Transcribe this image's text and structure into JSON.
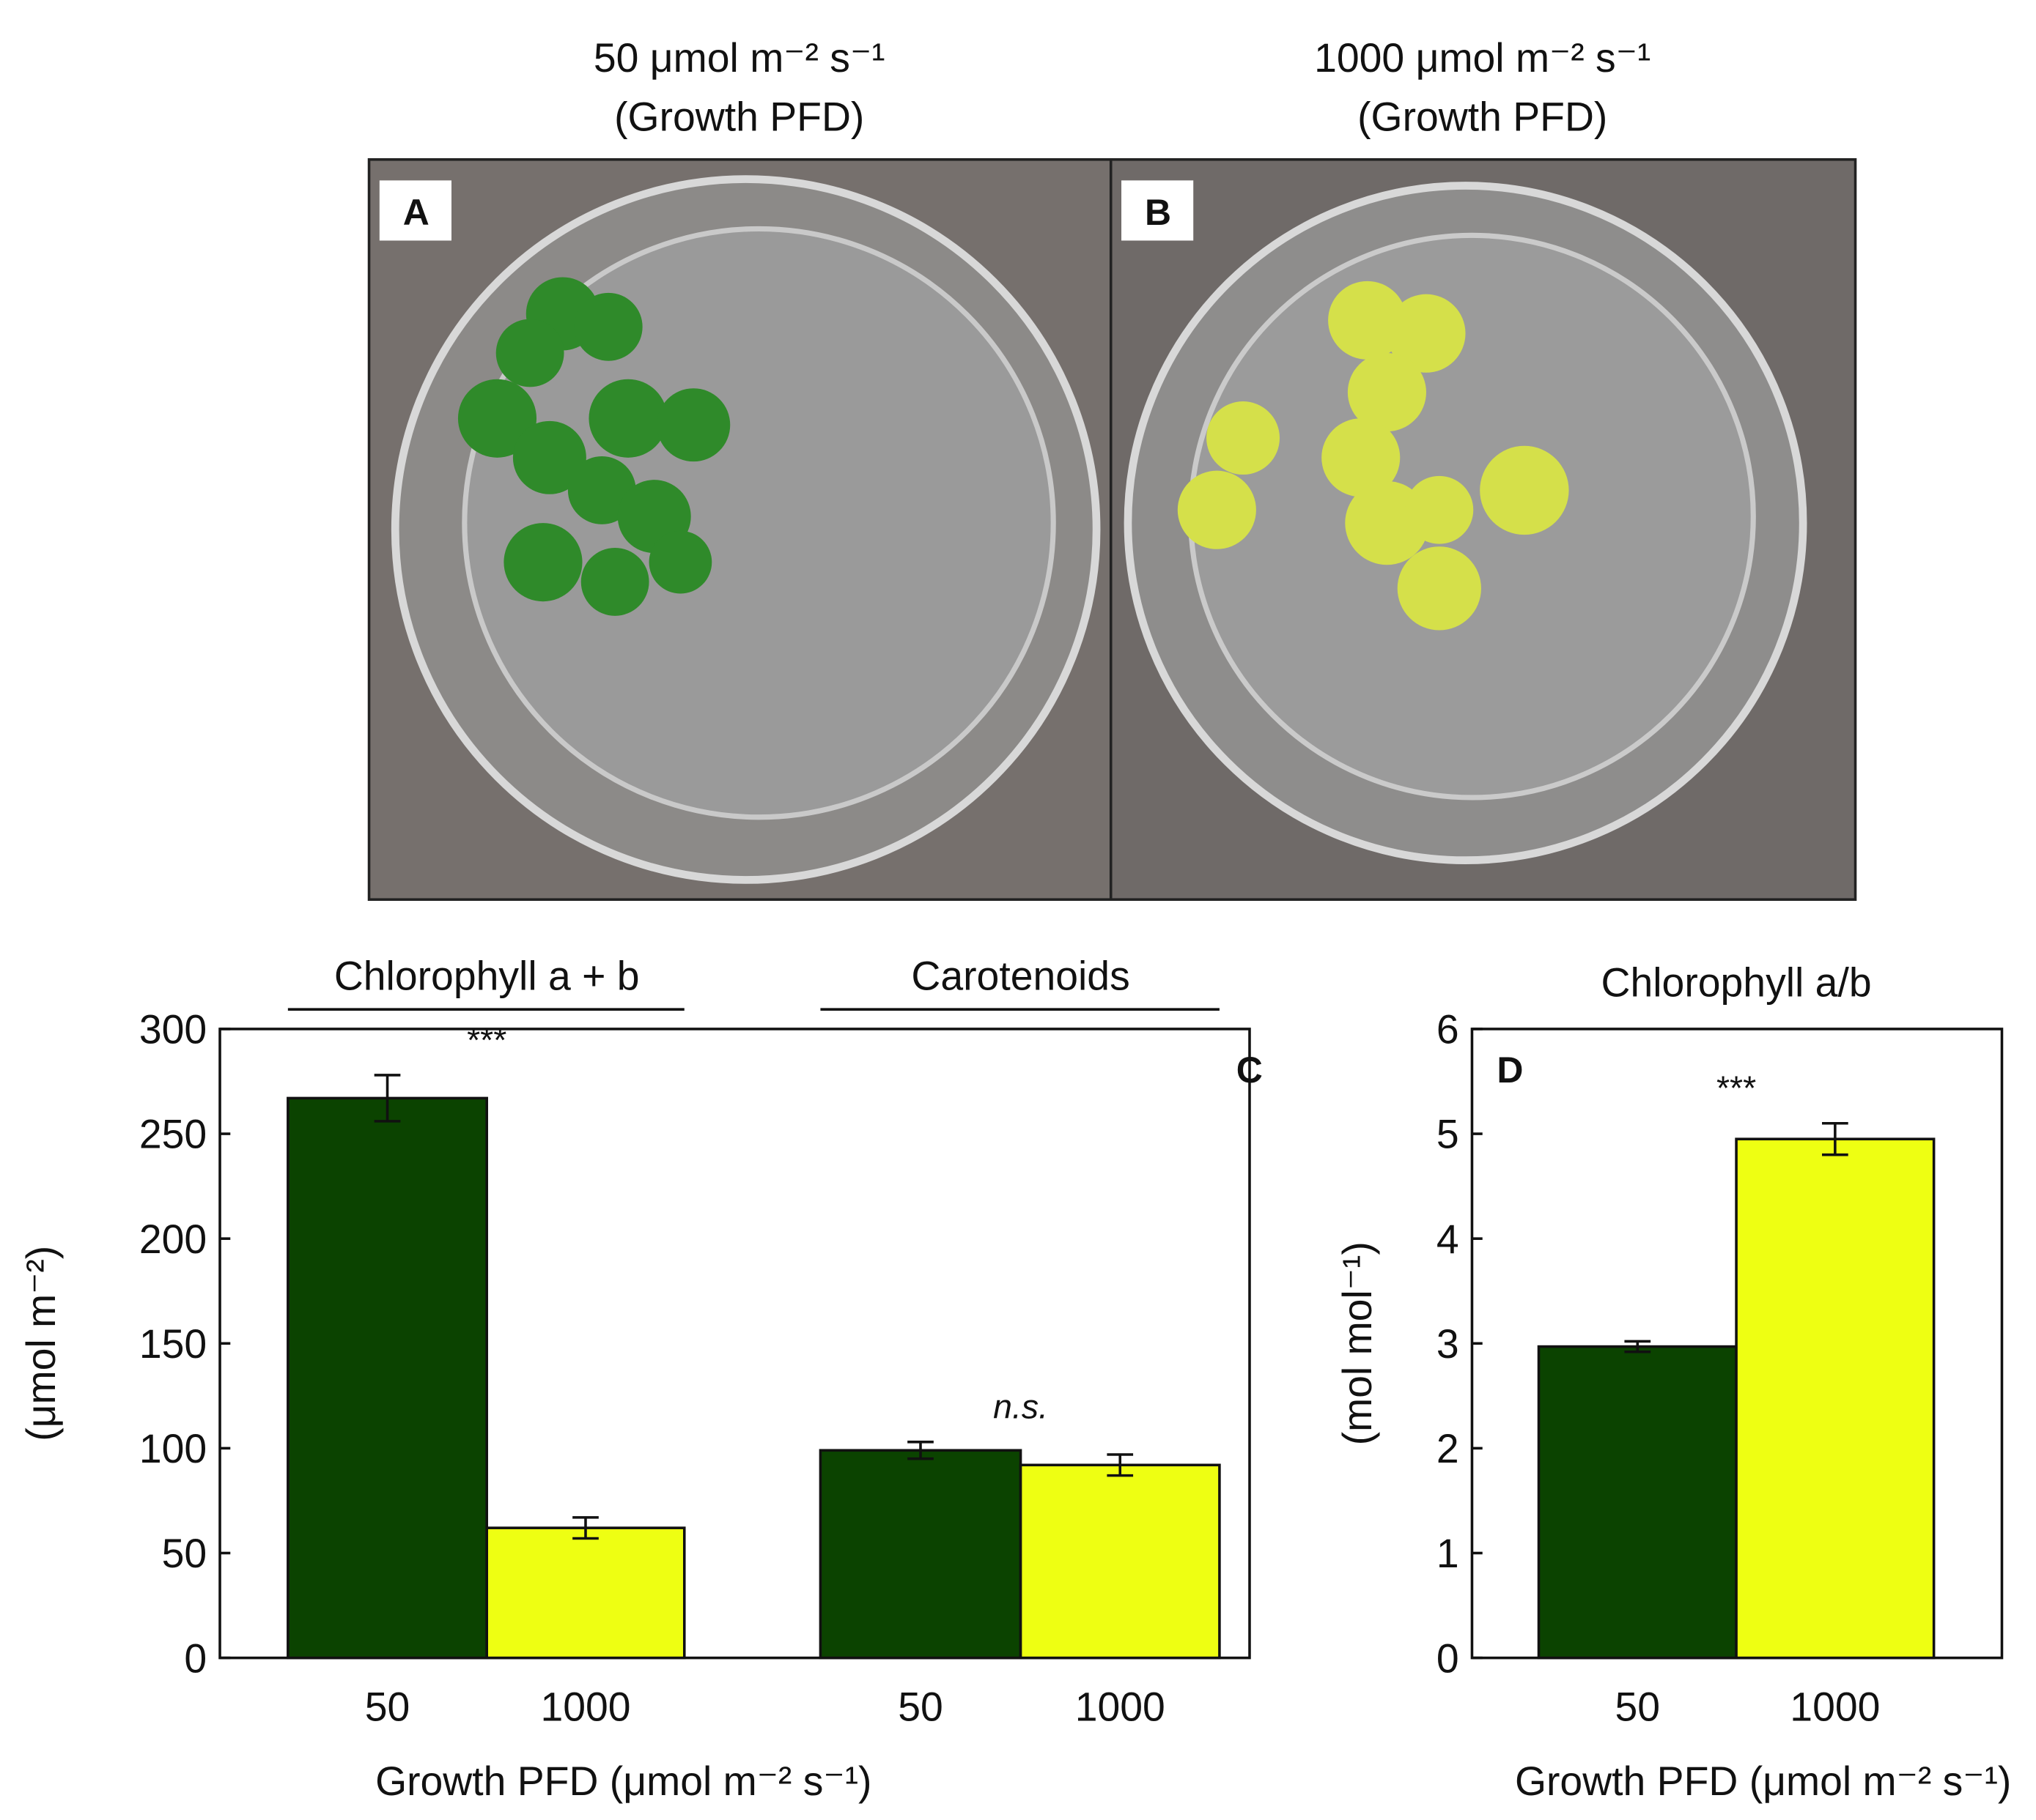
{
  "photos": [
    {
      "letter": "A",
      "title": "50 μmol m⁻² s⁻¹",
      "subtitle": "(Growth PFD)"
    },
    {
      "letter": "B",
      "title": "1000 μmol m⁻² s⁻¹",
      "subtitle": "(Growth PFD)"
    }
  ],
  "chart_data": [
    {
      "type": "bar",
      "panel": "C",
      "colors": [
        "#0b4300",
        "#eeff12"
      ],
      "groups": [
        {
          "name": "Chlorophyll a + b",
          "categories": [
            "50",
            "1000"
          ],
          "values": [
            267,
            62
          ],
          "errors": [
            11,
            5
          ],
          "annotation": "***"
        },
        {
          "name": "Carotenoids",
          "categories": [
            "50",
            "1000"
          ],
          "values": [
            99,
            92
          ],
          "errors": [
            4,
            5
          ],
          "annotation": "n.s."
        }
      ],
      "xlabel": "Growth PFD (μmol m⁻² s⁻¹)",
      "ylabel": "(μmol m⁻²)",
      "ylim": [
        0,
        300
      ],
      "yticks": [
        0,
        50,
        100,
        150,
        200,
        250,
        300
      ]
    },
    {
      "type": "bar",
      "panel": "D",
      "title": "Chlorophyll a/b",
      "colors": [
        "#0b4300",
        "#eeff12"
      ],
      "groups": [
        {
          "categories": [
            "50",
            "1000"
          ],
          "values": [
            2.97,
            4.95
          ],
          "errors": [
            0.05,
            0.15
          ],
          "annotation": "***"
        }
      ],
      "xlabel": "Growth PFD (μmol m⁻² s⁻¹)",
      "ylabel": "(mol mol⁻¹)",
      "ylim": [
        0,
        6
      ],
      "yticks": [
        0,
        1,
        2,
        3,
        4,
        5,
        6
      ]
    }
  ]
}
